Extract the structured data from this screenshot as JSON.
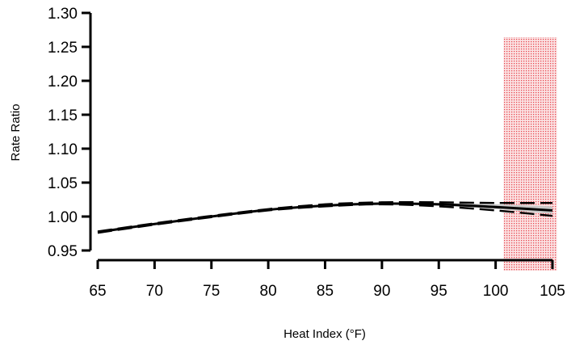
{
  "chart_data": {
    "type": "line",
    "title": "",
    "xlabel": "Heat Index (°F)",
    "ylabel": "Rate Ratio",
    "xlim": [
      65,
      105
    ],
    "ylim": [
      0.95,
      1.3
    ],
    "x_ticks": [
      "65",
      "70",
      "75",
      "80",
      "85",
      "90",
      "95",
      "100",
      "105"
    ],
    "y_ticks": [
      "0.95",
      "1.00",
      "1.05",
      "1.10",
      "1.15",
      "1.20",
      "1.25",
      "1.30"
    ],
    "grid": false,
    "highlight_region": {
      "x_from": 100.7,
      "x_to": 105.4,
      "color": "#e8474f",
      "pattern": "dotted"
    },
    "series": [
      {
        "style": "solid",
        "color": "#000000",
        "x": [
          65,
          70,
          75,
          80,
          85,
          90,
          95,
          100,
          105
        ],
        "y": [
          0.977,
          0.989,
          1.0,
          1.01,
          1.016,
          1.019,
          1.018,
          1.014,
          1.009
        ]
      },
      {
        "style": "dashed",
        "role": "upper bound",
        "color": "#000000",
        "x": [
          65,
          70,
          75,
          80,
          85,
          90,
          95,
          100,
          105
        ],
        "y": [
          0.978,
          0.99,
          1.001,
          1.011,
          1.018,
          1.021,
          1.021,
          1.02,
          1.02
        ]
      },
      {
        "style": "dashed",
        "role": "lower bound",
        "color": "#000000",
        "x": [
          65,
          70,
          75,
          80,
          85,
          90,
          95,
          100,
          105
        ],
        "y": [
          0.976,
          0.988,
          0.999,
          1.009,
          1.015,
          1.018,
          1.015,
          1.009,
          1.001
        ]
      }
    ],
    "band": {
      "color": "#c8c8c8",
      "x": [
        65,
        70,
        75,
        80,
        85,
        90,
        95,
        100,
        105
      ],
      "upper": [
        0.977,
        0.989,
        1.0,
        1.01,
        1.016,
        1.02,
        1.02,
        1.018,
        1.015
      ],
      "lower": [
        0.977,
        0.989,
        1.0,
        1.01,
        1.016,
        1.018,
        1.016,
        1.011,
        1.004
      ]
    }
  }
}
